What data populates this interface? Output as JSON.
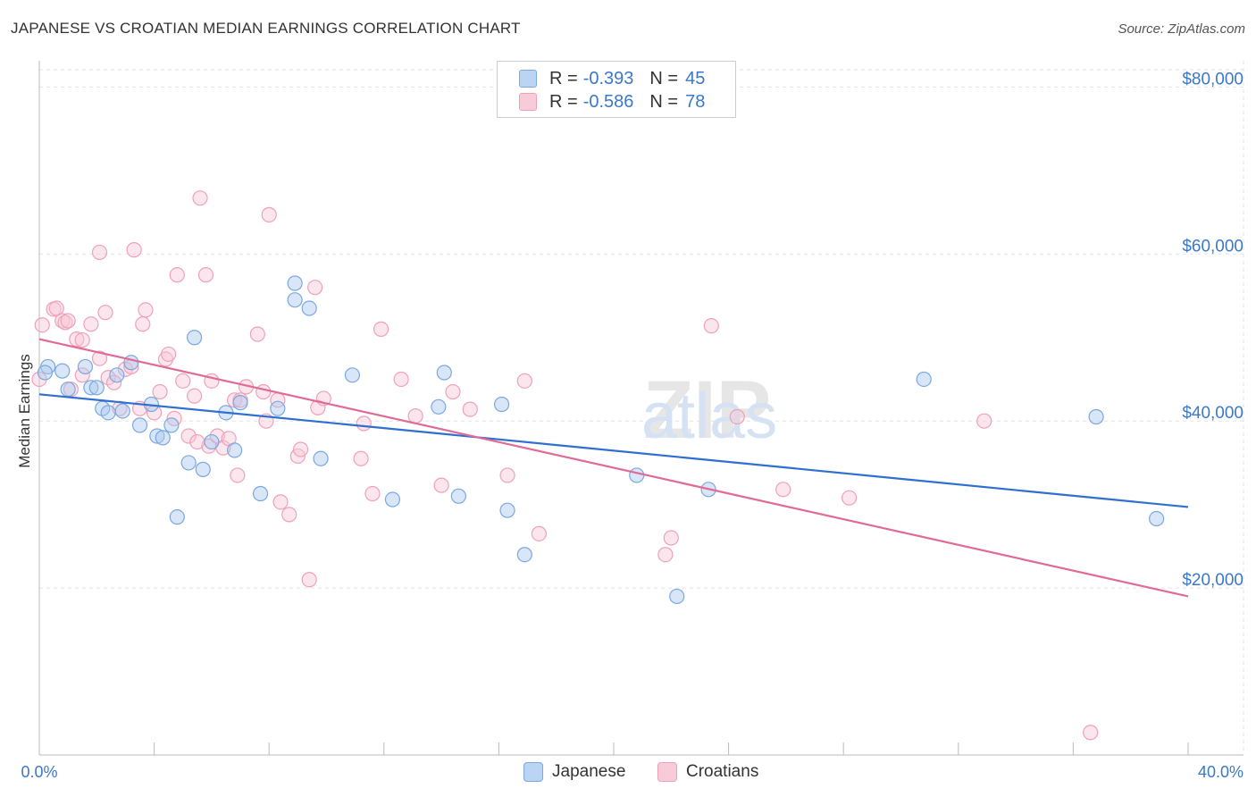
{
  "chart_data": {
    "type": "scatter",
    "title": "JAPANESE VS CROATIAN MEDIAN EARNINGS CORRELATION CHART",
    "source": "Source: ZipAtlas.com",
    "xlabel": "",
    "ylabel": "Median Earnings",
    "xlim": [
      0,
      40
    ],
    "ylim": [
      0,
      84000
    ],
    "y_ticks": [
      20000,
      40000,
      60000,
      80000
    ],
    "y_tick_labels": [
      "$20,000",
      "$40,000",
      "$60,000",
      "$80,000"
    ],
    "x_tick_labels": [
      "0.0%",
      "40.0%"
    ],
    "watermark": "ZIPatlas",
    "legend": [
      {
        "r_label": "R =",
        "r_value": "-0.393",
        "n_label": "N =",
        "n_value": "45"
      },
      {
        "r_label": "R =",
        "r_value": "-0.586",
        "n_label": "N =",
        "n_value": "78"
      }
    ],
    "series": [
      {
        "name": "Japanese",
        "color": "#7aa8e0",
        "fill": "#a9c8ee",
        "line_color": "#2f6fd0",
        "trend": {
          "x": [
            0,
            40
          ],
          "y": [
            43200,
            29700
          ]
        },
        "points": [
          [
            0.3,
            46500
          ],
          [
            0.8,
            46000
          ],
          [
            1.0,
            43800
          ],
          [
            1.6,
            46500
          ],
          [
            1.8,
            44000
          ],
          [
            2.2,
            41500
          ],
          [
            2.4,
            41000
          ],
          [
            2.7,
            45500
          ],
          [
            2.9,
            41200
          ],
          [
            3.2,
            47000
          ],
          [
            3.5,
            39500
          ],
          [
            3.9,
            42000
          ],
          [
            4.1,
            38200
          ],
          [
            4.3,
            38000
          ],
          [
            4.6,
            39500
          ],
          [
            4.8,
            28500
          ],
          [
            5.2,
            35000
          ],
          [
            5.4,
            50000
          ],
          [
            5.7,
            34200
          ],
          [
            6.0,
            37500
          ],
          [
            6.5,
            41000
          ],
          [
            6.8,
            36500
          ],
          [
            7.0,
            42200
          ],
          [
            7.7,
            31300
          ],
          [
            8.3,
            41500
          ],
          [
            8.9,
            54500
          ],
          [
            8.9,
            56500
          ],
          [
            9.4,
            53500
          ],
          [
            9.8,
            35500
          ],
          [
            10.9,
            45500
          ],
          [
            12.3,
            30600
          ],
          [
            13.9,
            41700
          ],
          [
            14.1,
            45800
          ],
          [
            14.6,
            31000
          ],
          [
            16.1,
            42000
          ],
          [
            16.3,
            29300
          ],
          [
            16.9,
            24000
          ],
          [
            20.8,
            33500
          ],
          [
            22.2,
            19000
          ],
          [
            23.3,
            31800
          ],
          [
            30.8,
            45000
          ],
          [
            36.8,
            40500
          ],
          [
            38.9,
            28300
          ],
          [
            0.2,
            45800
          ],
          [
            2.0,
            44000
          ]
        ]
      },
      {
        "name": "Croatians",
        "color": "#f0a0b8",
        "fill": "#f8c8d6",
        "line_color": "#e06b96",
        "trend": {
          "x": [
            0,
            40
          ],
          "y": [
            49800,
            19000
          ]
        },
        "points": [
          [
            0.0,
            45000
          ],
          [
            0.1,
            51500
          ],
          [
            0.5,
            53400
          ],
          [
            0.6,
            53500
          ],
          [
            0.8,
            52000
          ],
          [
            0.9,
            51800
          ],
          [
            1.0,
            52000
          ],
          [
            1.3,
            49800
          ],
          [
            1.5,
            45500
          ],
          [
            1.5,
            49700
          ],
          [
            1.8,
            51600
          ],
          [
            2.1,
            47500
          ],
          [
            2.1,
            60200
          ],
          [
            2.3,
            53000
          ],
          [
            2.4,
            45200
          ],
          [
            2.6,
            44600
          ],
          [
            2.8,
            41500
          ],
          [
            3.0,
            46200
          ],
          [
            3.2,
            46500
          ],
          [
            3.3,
            60500
          ],
          [
            3.5,
            41500
          ],
          [
            3.6,
            51600
          ],
          [
            3.7,
            53300
          ],
          [
            4.0,
            41000
          ],
          [
            4.2,
            43500
          ],
          [
            4.4,
            47400
          ],
          [
            4.5,
            48000
          ],
          [
            4.7,
            40300
          ],
          [
            4.8,
            57500
          ],
          [
            5.0,
            44800
          ],
          [
            5.2,
            38200
          ],
          [
            5.4,
            43000
          ],
          [
            5.6,
            66700
          ],
          [
            5.8,
            57500
          ],
          [
            5.9,
            37000
          ],
          [
            6.0,
            44800
          ],
          [
            6.2,
            38200
          ],
          [
            6.4,
            36800
          ],
          [
            6.6,
            37900
          ],
          [
            6.8,
            42500
          ],
          [
            6.9,
            33500
          ],
          [
            7.0,
            42500
          ],
          [
            7.2,
            44100
          ],
          [
            7.6,
            50400
          ],
          [
            7.8,
            43500
          ],
          [
            7.9,
            40000
          ],
          [
            8.0,
            64700
          ],
          [
            8.3,
            42500
          ],
          [
            8.4,
            30300
          ],
          [
            8.7,
            28800
          ],
          [
            9.0,
            35800
          ],
          [
            9.1,
            36600
          ],
          [
            9.4,
            21000
          ],
          [
            9.6,
            56000
          ],
          [
            9.7,
            41600
          ],
          [
            9.9,
            42700
          ],
          [
            11.2,
            35500
          ],
          [
            11.3,
            39700
          ],
          [
            11.6,
            31300
          ],
          [
            11.9,
            51000
          ],
          [
            12.6,
            45000
          ],
          [
            13.1,
            40600
          ],
          [
            14.0,
            32300
          ],
          [
            14.4,
            43500
          ],
          [
            15.0,
            41400
          ],
          [
            16.3,
            33500
          ],
          [
            16.9,
            44800
          ],
          [
            17.4,
            26500
          ],
          [
            21.8,
            24000
          ],
          [
            22.0,
            26000
          ],
          [
            23.4,
            51400
          ],
          [
            24.3,
            40500
          ],
          [
            25.9,
            31800
          ],
          [
            28.2,
            30800
          ],
          [
            32.9,
            40000
          ],
          [
            36.6,
            2700
          ],
          [
            1.1,
            43800
          ],
          [
            5.5,
            37500
          ]
        ]
      }
    ]
  }
}
